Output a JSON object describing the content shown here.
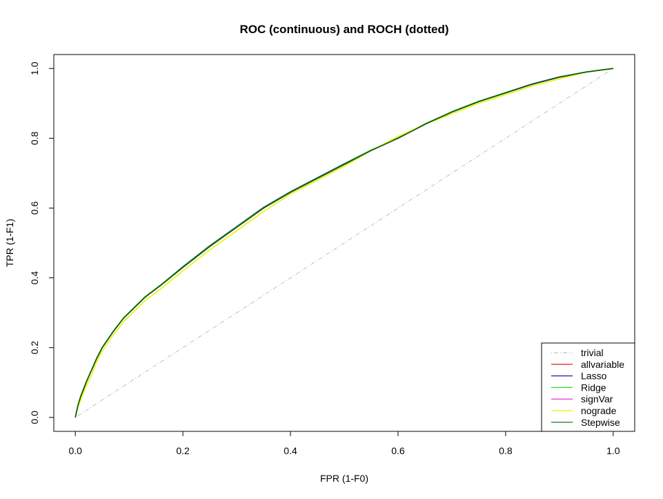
{
  "chart_data": {
    "type": "line",
    "title": "ROC (continuous) and ROCH (dotted)",
    "xlabel": "FPR (1-F0)",
    "ylabel": "TPR (1-F1)",
    "xlim": [
      -0.04,
      1.04
    ],
    "ylim": [
      -0.04,
      1.04
    ],
    "x_ticks": [
      0.0,
      0.2,
      0.4,
      0.6,
      0.8,
      1.0
    ],
    "y_ticks": [
      0.0,
      0.2,
      0.4,
      0.6,
      0.8,
      1.0
    ],
    "x_tick_labels": [
      "0.0",
      "0.2",
      "0.4",
      "0.6",
      "0.8",
      "1.0"
    ],
    "y_tick_labels": [
      "0.0",
      "0.2",
      "0.4",
      "0.6",
      "0.8",
      "1.0"
    ],
    "grid": false,
    "legend_position": "bottom-right",
    "x": [
      0.0,
      0.005,
      0.01,
      0.02,
      0.03,
      0.04,
      0.05,
      0.07,
      0.09,
      0.11,
      0.13,
      0.16,
      0.2,
      0.25,
      0.3,
      0.35,
      0.4,
      0.45,
      0.5,
      0.55,
      0.6,
      0.65,
      0.7,
      0.75,
      0.8,
      0.85,
      0.9,
      0.95,
      1.0
    ],
    "series": [
      {
        "name": "trivial",
        "color": "#bebebe",
        "dash": "dotdash",
        "x": [
          0,
          1
        ],
        "values": [
          0,
          1
        ]
      },
      {
        "name": "allvariable",
        "color": "#df0000",
        "values": [
          0.0,
          0.035,
          0.06,
          0.1,
          0.135,
          0.17,
          0.2,
          0.245,
          0.285,
          0.315,
          0.345,
          0.38,
          0.43,
          0.49,
          0.545,
          0.6,
          0.645,
          0.685,
          0.725,
          0.765,
          0.8,
          0.84,
          0.875,
          0.905,
          0.93,
          0.955,
          0.975,
          0.99,
          1.0
        ]
      },
      {
        "name": "Lasso",
        "color": "#1a1a9e",
        "values": [
          0.0,
          0.035,
          0.06,
          0.1,
          0.135,
          0.17,
          0.2,
          0.245,
          0.285,
          0.316,
          0.346,
          0.381,
          0.432,
          0.492,
          0.547,
          0.602,
          0.647,
          0.687,
          0.727,
          0.766,
          0.801,
          0.841,
          0.876,
          0.906,
          0.931,
          0.956,
          0.976,
          0.99,
          1.0
        ]
      },
      {
        "name": "Ridge",
        "color": "#22e022",
        "values": [
          0.0,
          0.036,
          0.061,
          0.101,
          0.136,
          0.171,
          0.201,
          0.246,
          0.286,
          0.316,
          0.346,
          0.381,
          0.431,
          0.491,
          0.546,
          0.601,
          0.646,
          0.686,
          0.726,
          0.766,
          0.801,
          0.841,
          0.876,
          0.906,
          0.931,
          0.955,
          0.975,
          0.99,
          1.0
        ]
      },
      {
        "name": "signVar",
        "color": "#d020d0",
        "values": [
          0.0,
          0.035,
          0.06,
          0.1,
          0.135,
          0.17,
          0.2,
          0.245,
          0.285,
          0.315,
          0.345,
          0.38,
          0.43,
          0.49,
          0.545,
          0.6,
          0.645,
          0.685,
          0.725,
          0.765,
          0.8,
          0.84,
          0.875,
          0.905,
          0.93,
          0.955,
          0.975,
          0.99,
          1.0
        ]
      },
      {
        "name": "nograde",
        "color": "#f0f000",
        "values": [
          0.0,
          0.03,
          0.05,
          0.09,
          0.12,
          0.16,
          0.19,
          0.235,
          0.275,
          0.305,
          0.335,
          0.37,
          0.42,
          0.48,
          0.535,
          0.59,
          0.64,
          0.68,
          0.72,
          0.765,
          0.805,
          0.84,
          0.87,
          0.9,
          0.925,
          0.95,
          0.97,
          0.99,
          1.0
        ]
      },
      {
        "name": "Stepwise",
        "color": "#006400",
        "values": [
          0.0,
          0.035,
          0.06,
          0.1,
          0.135,
          0.17,
          0.2,
          0.245,
          0.285,
          0.315,
          0.345,
          0.38,
          0.43,
          0.49,
          0.545,
          0.6,
          0.645,
          0.685,
          0.725,
          0.765,
          0.8,
          0.84,
          0.875,
          0.905,
          0.93,
          0.955,
          0.975,
          0.99,
          1.0
        ]
      }
    ]
  }
}
